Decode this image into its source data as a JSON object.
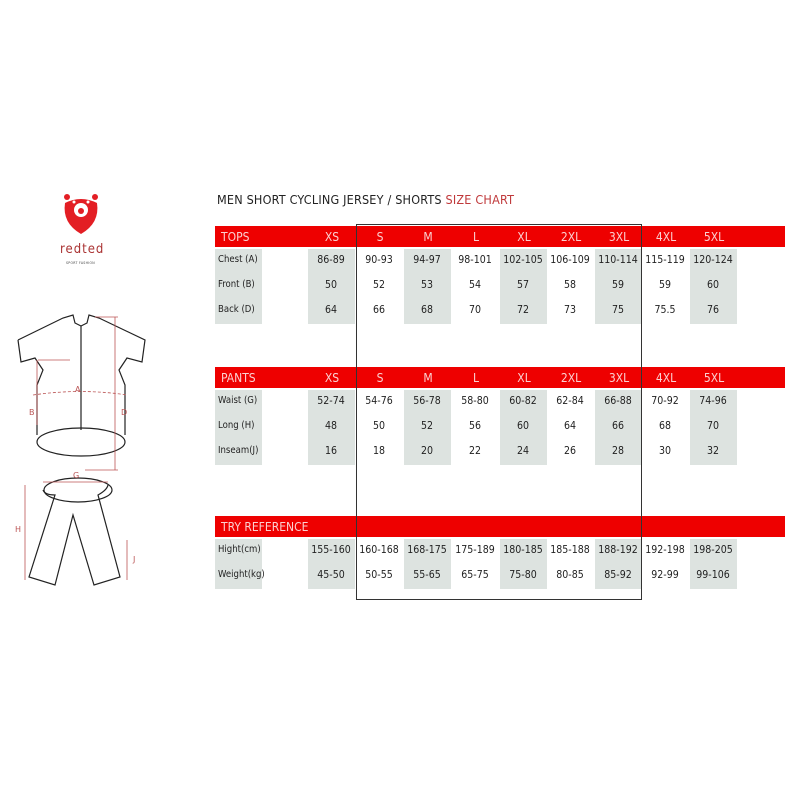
{
  "brand": {
    "name": "redted",
    "tagline": "SPORT FASHION",
    "color": "#e31e24"
  },
  "title": {
    "main": "MEN SHORT CYCLING JERSEY / SHORTS",
    "accent": "SIZE CHART"
  },
  "sizes": [
    "XS",
    "S",
    "M",
    "L",
    "XL",
    "2XL",
    "3XL",
    "4XL",
    "5XL"
  ],
  "diagram_labels": {
    "a": "A",
    "b": "B",
    "d": "D",
    "g": "G",
    "h": "H",
    "j": "J"
  },
  "sections": [
    {
      "name": "TOPS",
      "show_sizes": true,
      "rows": [
        {
          "label": "Chest (A)",
          "values": [
            "86-89",
            "90-93",
            "94-97",
            "98-101",
            "102-105",
            "106-109",
            "110-114",
            "115-119",
            "120-124"
          ]
        },
        {
          "label": "Front (B)",
          "values": [
            "50",
            "52",
            "53",
            "54",
            "57",
            "58",
            "59",
            "59",
            "60"
          ]
        },
        {
          "label": "Back (D)",
          "values": [
            "64",
            "66",
            "68",
            "70",
            "72",
            "73",
            "75",
            "75.5",
            "76"
          ]
        }
      ]
    },
    {
      "name": "PANTS",
      "show_sizes": true,
      "rows": [
        {
          "label": "Waist (G)",
          "values": [
            "52-74",
            "54-76",
            "56-78",
            "58-80",
            "60-82",
            "62-84",
            "66-88",
            "70-92",
            "74-96"
          ]
        },
        {
          "label": "Long (H)",
          "values": [
            "48",
            "50",
            "52",
            "56",
            "60",
            "64",
            "66",
            "68",
            "70"
          ]
        },
        {
          "label": "Inseam(J)",
          "values": [
            "16",
            "18",
            "20",
            "22",
            "24",
            "26",
            "28",
            "30",
            "32"
          ]
        }
      ]
    },
    {
      "name": "TRY REFERENCE",
      "show_sizes": false,
      "rows": [
        {
          "label": "Hight(cm)",
          "values": [
            "155-160",
            "160-168",
            "168-175",
            "175-189",
            "180-185",
            "185-188",
            "188-192",
            "192-198",
            "198-205"
          ]
        },
        {
          "label": "Weight(kg)",
          "values": [
            "45-50",
            "50-55",
            "55-65",
            "65-75",
            "75-80",
            "80-85",
            "85-92",
            "92-99",
            "99-106"
          ]
        }
      ]
    }
  ]
}
